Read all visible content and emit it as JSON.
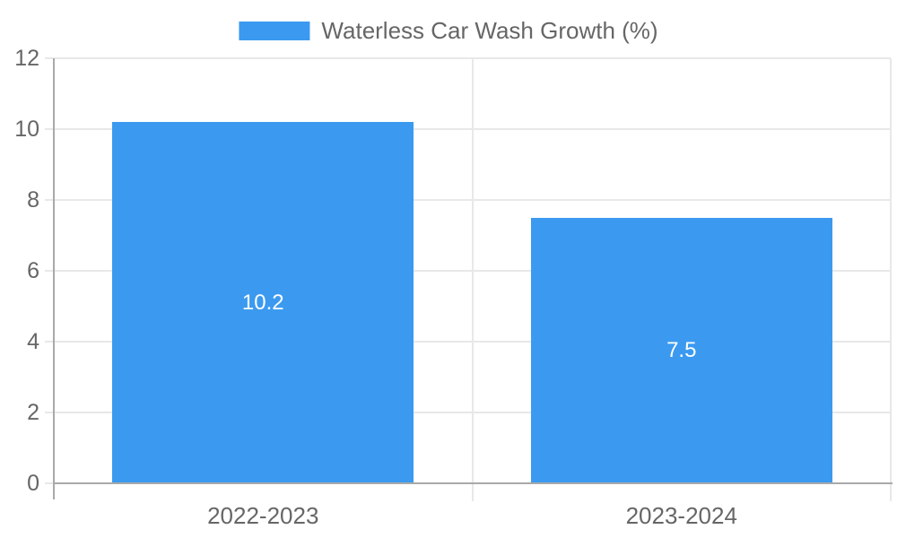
{
  "chart_data": {
    "type": "bar",
    "title": "",
    "legend": {
      "label": "Waterless Car Wash Growth (%)",
      "position": "top"
    },
    "categories": [
      "2022-2023",
      "2023-2024"
    ],
    "values": [
      10.2,
      7.5
    ],
    "value_labels": [
      "10.2",
      "7.5"
    ],
    "xlabel": "",
    "ylabel": "",
    "ylim": [
      0,
      12
    ],
    "yticks": [
      0,
      2,
      4,
      6,
      8,
      10,
      12
    ],
    "ytick_labels": [
      "0",
      "2",
      "4",
      "6",
      "8",
      "10",
      "12"
    ],
    "grid": true,
    "colors": {
      "bar": "#3b9af0",
      "grid": "#e8e8e8",
      "axis": "#a9a9a9",
      "tick_text": "#666666",
      "value_text": "#ffffff"
    }
  }
}
